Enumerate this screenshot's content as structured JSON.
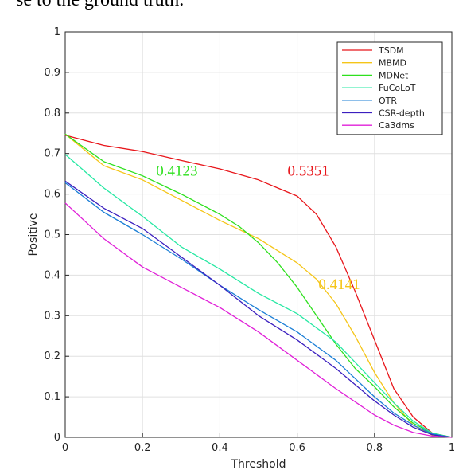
{
  "caption_fragment": "se to the ground truth.",
  "chart_data": {
    "type": "line",
    "xlabel": "Threshold",
    "ylabel": "Positive",
    "xlim": [
      0,
      1
    ],
    "ylim": [
      0,
      1
    ],
    "x_ticks": [
      "0",
      "0.2",
      "0.4",
      "0.6",
      "0.8",
      "1"
    ],
    "y_ticks": [
      "0",
      "0.1",
      "0.2",
      "0.3",
      "0.4",
      "0.5",
      "0.6",
      "0.7",
      "0.8",
      "0.9",
      "1"
    ],
    "grid": true,
    "legend_position": "top-right",
    "series": [
      {
        "name": "TSDM",
        "color": "#e8161b",
        "x": [
          0,
          0.1,
          0.2,
          0.3,
          0.4,
          0.5,
          0.55,
          0.6,
          0.65,
          0.7,
          0.75,
          0.8,
          0.85,
          0.9,
          0.95,
          1.0
        ],
        "y": [
          0.745,
          0.72,
          0.705,
          0.683,
          0.662,
          0.635,
          0.615,
          0.595,
          0.55,
          0.47,
          0.36,
          0.24,
          0.12,
          0.05,
          0.01,
          0
        ]
      },
      {
        "name": "MBMD",
        "color": "#f5c518",
        "x": [
          0,
          0.1,
          0.2,
          0.3,
          0.4,
          0.5,
          0.6,
          0.65,
          0.7,
          0.75,
          0.8,
          0.85,
          0.9,
          0.95,
          1.0
        ],
        "y": [
          0.748,
          0.67,
          0.635,
          0.585,
          0.535,
          0.49,
          0.43,
          0.39,
          0.33,
          0.25,
          0.16,
          0.085,
          0.03,
          0.005,
          0
        ]
      },
      {
        "name": "MDNet",
        "color": "#2ee01e",
        "x": [
          0,
          0.1,
          0.2,
          0.3,
          0.4,
          0.45,
          0.5,
          0.55,
          0.6,
          0.65,
          0.7,
          0.75,
          0.8,
          0.85,
          0.9,
          0.95,
          1.0
        ],
        "y": [
          0.748,
          0.68,
          0.645,
          0.6,
          0.55,
          0.52,
          0.48,
          0.43,
          0.37,
          0.3,
          0.23,
          0.17,
          0.125,
          0.075,
          0.035,
          0.01,
          0
        ]
      },
      {
        "name": "FuCoLoT",
        "color": "#26e8a3",
        "x": [
          0,
          0.1,
          0.2,
          0.3,
          0.4,
          0.5,
          0.6,
          0.7,
          0.8,
          0.85,
          0.9,
          0.95,
          1.0
        ],
        "y": [
          0.698,
          0.615,
          0.545,
          0.47,
          0.415,
          0.355,
          0.305,
          0.235,
          0.135,
          0.085,
          0.04,
          0.01,
          0
        ]
      },
      {
        "name": "OTR",
        "color": "#1c7fd6",
        "x": [
          0,
          0.1,
          0.2,
          0.3,
          0.4,
          0.5,
          0.6,
          0.7,
          0.8,
          0.85,
          0.9,
          0.95,
          1.0
        ],
        "y": [
          0.628,
          0.555,
          0.5,
          0.44,
          0.375,
          0.315,
          0.26,
          0.19,
          0.1,
          0.06,
          0.03,
          0.008,
          0
        ]
      },
      {
        "name": "CSR-depth",
        "color": "#3b1fbf",
        "x": [
          0,
          0.1,
          0.2,
          0.3,
          0.4,
          0.5,
          0.6,
          0.7,
          0.8,
          0.85,
          0.9,
          0.95,
          1.0
        ],
        "y": [
          0.632,
          0.565,
          0.515,
          0.445,
          0.375,
          0.3,
          0.24,
          0.17,
          0.09,
          0.055,
          0.025,
          0.006,
          0
        ]
      },
      {
        "name": "Ca3dms",
        "color": "#e020d8",
        "x": [
          0,
          0.1,
          0.2,
          0.3,
          0.4,
          0.5,
          0.6,
          0.7,
          0.8,
          0.85,
          0.9,
          0.95,
          1.0
        ],
        "y": [
          0.578,
          0.49,
          0.42,
          0.37,
          0.32,
          0.26,
          0.19,
          0.12,
          0.055,
          0.03,
          0.012,
          0.003,
          0
        ]
      }
    ],
    "annotations": [
      {
        "text": "0.4123",
        "x": 0.235,
        "y": 0.645,
        "color": "#2ee01e"
      },
      {
        "text": "0.5351",
        "x": 0.575,
        "y": 0.645,
        "color": "#e8161b"
      },
      {
        "text": "0.4141",
        "x": 0.655,
        "y": 0.365,
        "color": "#f5c518"
      }
    ]
  }
}
